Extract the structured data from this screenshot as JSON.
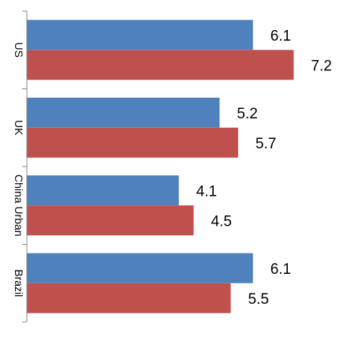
{
  "chart_data": {
    "type": "bar",
    "orientation": "horizontal",
    "categories": [
      "US",
      "UK",
      "China Urban",
      "Brazil"
    ],
    "series": [
      {
        "values": [
          6.1,
          5.2,
          4.1,
          6.1
        ],
        "color": "#4f81bd"
      },
      {
        "values": [
          7.2,
          5.7,
          4.5,
          5.5
        ],
        "color": "#c0504d"
      }
    ],
    "value_labels": [
      [
        "6.1",
        "5.2",
        "4.1",
        "6.1"
      ],
      [
        "7.2",
        "5.7",
        "4.5",
        "5.5"
      ]
    ],
    "xlim": [
      0,
      8.9
    ],
    "grid": false,
    "legend": "none",
    "title": "",
    "xlabel": "",
    "ylabel": ""
  }
}
